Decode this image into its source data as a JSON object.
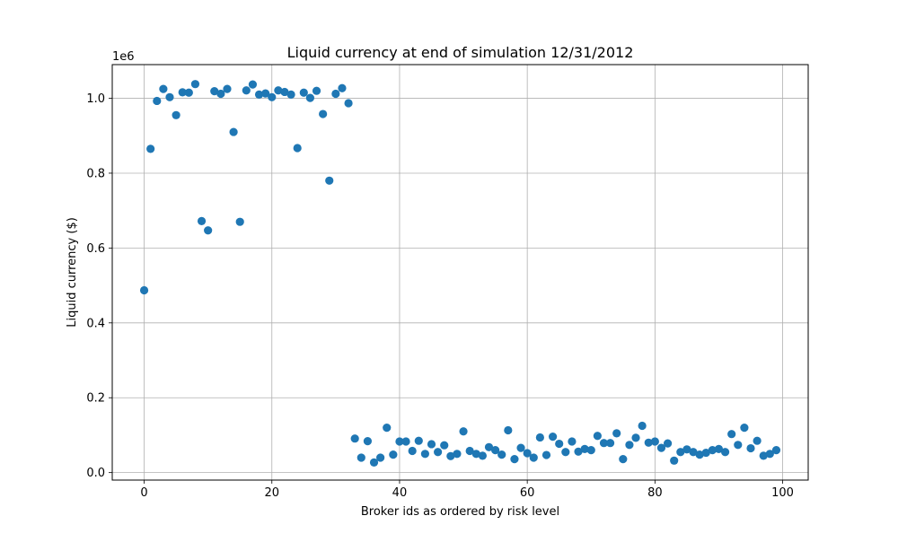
{
  "chart_data": {
    "type": "scatter",
    "title": "Liquid currency at end of simulation 12/31/2012",
    "xlabel": "Broker ids as ordered by risk level",
    "ylabel": "Liquid currency ($)",
    "y_multiplier_label": "1e6",
    "xlim": [
      -5,
      104
    ],
    "ylim": [
      -0.02,
      1.09
    ],
    "x_ticks": [
      0,
      20,
      40,
      60,
      80,
      100
    ],
    "x_tick_labels": [
      "0",
      "20",
      "40",
      "60",
      "80",
      "100"
    ],
    "y_ticks": [
      0.0,
      0.2,
      0.4,
      0.6,
      0.8,
      1.0
    ],
    "y_tick_labels": [
      "0.0",
      "0.2",
      "0.4",
      "0.6",
      "0.8",
      "1.0"
    ],
    "grid": true,
    "series": [
      {
        "color": "#1f77b4",
        "x": [
          0,
          1,
          2,
          3,
          4,
          5,
          6,
          7,
          8,
          9,
          10,
          11,
          12,
          13,
          14,
          15,
          16,
          17,
          18,
          19,
          20,
          21,
          22,
          23,
          24,
          25,
          26,
          27,
          28,
          29,
          30,
          31,
          32,
          33,
          34,
          35,
          36,
          37,
          38,
          39,
          40,
          41,
          42,
          43,
          44,
          45,
          46,
          47,
          48,
          49,
          50,
          51,
          52,
          53,
          54,
          55,
          56,
          57,
          58,
          59,
          60,
          61,
          62,
          63,
          64,
          65,
          66,
          67,
          68,
          69,
          70,
          71,
          72,
          73,
          74,
          75,
          76,
          77,
          78,
          79,
          80,
          81,
          82,
          83,
          84,
          85,
          86,
          87,
          88,
          89,
          90,
          91,
          92,
          93,
          94,
          95,
          96,
          97,
          98,
          99
        ],
        "y": [
          0.487,
          0.865,
          0.993,
          1.025,
          1.003,
          0.955,
          1.016,
          1.015,
          1.038,
          0.672,
          0.647,
          1.019,
          1.012,
          1.025,
          0.91,
          0.67,
          1.021,
          1.037,
          1.01,
          1.013,
          1.003,
          1.021,
          1.017,
          1.01,
          0.867,
          1.015,
          1.001,
          1.02,
          0.958,
          0.78,
          1.012,
          1.027,
          0.987,
          0.091,
          0.04,
          0.084,
          0.027,
          0.04,
          0.12,
          0.048,
          0.083,
          0.083,
          0.058,
          0.085,
          0.05,
          0.076,
          0.055,
          0.073,
          0.044,
          0.05,
          0.11,
          0.058,
          0.05,
          0.045,
          0.068,
          0.06,
          0.048,
          0.113,
          0.036,
          0.066,
          0.052,
          0.04,
          0.094,
          0.047,
          0.096,
          0.077,
          0.055,
          0.083,
          0.056,
          0.063,
          0.06,
          0.098,
          0.079,
          0.079,
          0.105,
          0.036,
          0.074,
          0.093,
          0.125,
          0.08,
          0.083,
          0.066,
          0.078,
          0.032,
          0.055,
          0.062,
          0.055,
          0.048,
          0.053,
          0.06,
          0.063,
          0.055,
          0.103,
          0.074,
          0.12,
          0.065,
          0.085,
          0.045,
          0.05,
          0.06
        ]
      }
    ]
  }
}
